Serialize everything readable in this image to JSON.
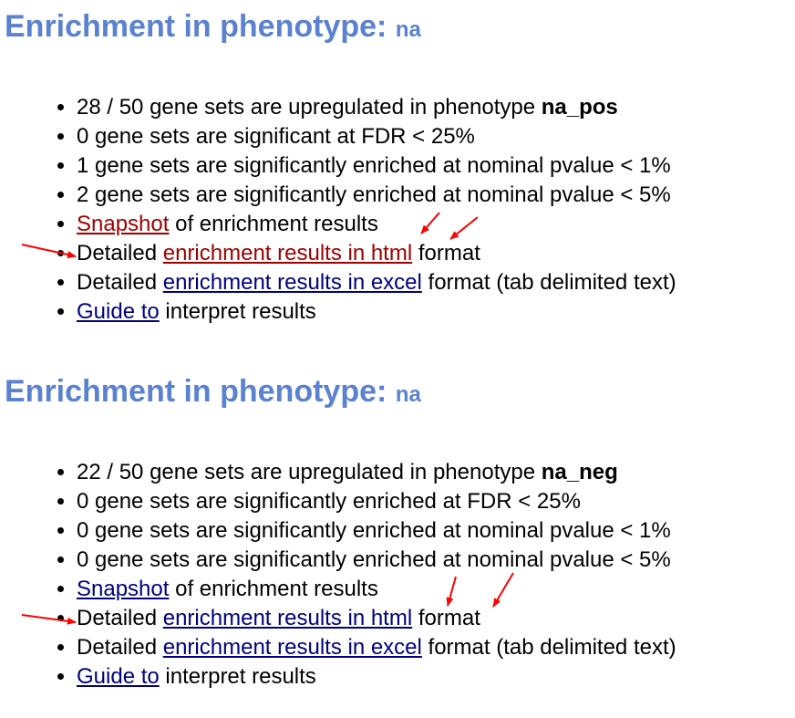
{
  "sections": [
    {
      "heading": "Enrichment in phenotype:",
      "phenotype": "na",
      "stats": {
        "upregulated_prefix": "28 / 50 gene sets are upregulated in phenotype",
        "upregulated_phenotype": "na_pos",
        "fdr": "0 gene sets are significant at FDR < 25%",
        "p1": "1 gene sets are significantly enriched at nominal pvalue < 1%",
        "p5": "2 gene sets are significantly enriched at nominal pvalue < 5%"
      },
      "links": {
        "snapshot": "Snapshot",
        "snapshot_suffix": " of enrichment results",
        "detailed_prefix": "Detailed ",
        "html_link": "enrichment results in html",
        "html_suffix": " format",
        "excel_link": "enrichment results in excel",
        "excel_suffix": " format (tab delimited text)",
        "guide_link": "Guide to",
        "guide_suffix": " interpret results"
      },
      "annotation_color": "#ff0000",
      "visited_link_color": "#a00000"
    },
    {
      "heading": "Enrichment in phenotype:",
      "phenotype": "na",
      "stats": {
        "upregulated_prefix": "22 / 50 gene sets are upregulated in phenotype",
        "upregulated_phenotype": "na_neg",
        "fdr": "0 gene sets are significantly enriched at FDR < 25%",
        "p1": "0 gene sets are significantly enriched at nominal pvalue < 1%",
        "p5": "0 gene sets are significantly enriched at nominal pvalue < 5%"
      },
      "links": {
        "snapshot": "Snapshot",
        "snapshot_suffix": " of enrichment results",
        "detailed_prefix": "Detailed ",
        "html_link": "enrichment results in html",
        "html_suffix": " format",
        "excel_link": "enrichment results in excel",
        "excel_suffix": " format (tab delimited text)",
        "guide_link": "Guide to",
        "guide_suffix": " interpret results"
      },
      "annotation_color": "#ff0000",
      "link_color": "#000080"
    }
  ]
}
